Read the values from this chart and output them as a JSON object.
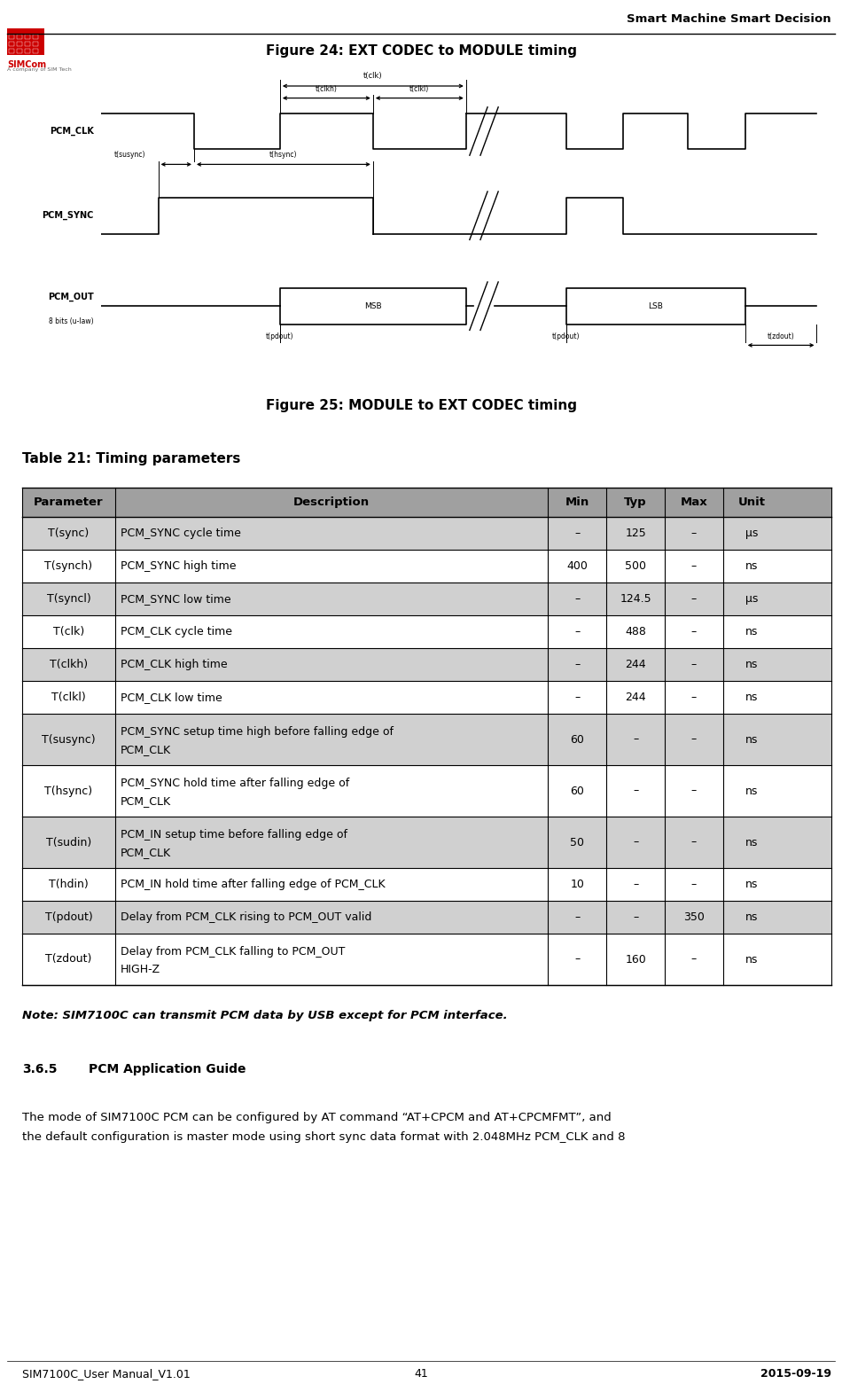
{
  "page_width": 9.5,
  "page_height": 15.61,
  "dpi": 100,
  "bg_color": "#ffffff",
  "header_text": "Smart Machine Smart Decision",
  "figure24_title": "Figure 24: EXT CODEC to MODULE timing",
  "figure25_title": "Figure 25: MODULE to EXT CODEC timing",
  "table_title": "Table 21: Timing parameters",
  "table_headers": [
    "Parameter",
    "Description",
    "Min",
    "Typ",
    "Max",
    "Unit"
  ],
  "table_header_bg": "#a0a0a0",
  "table_row_bg_even": "#d0d0d0",
  "table_row_bg_odd": "#ffffff",
  "table_rows": [
    [
      "T(sync)",
      "PCM_SYNC cycle time",
      "–",
      "125",
      "–",
      "μs"
    ],
    [
      "T(synch)",
      "PCM_SYNC high time",
      "400",
      "500",
      "–",
      "ns"
    ],
    [
      "T(syncl)",
      "PCM_SYNC low time",
      "–",
      "124.5",
      "–",
      "μs"
    ],
    [
      "T(clk)",
      "PCM_CLK cycle time",
      "–",
      "488",
      "–",
      "ns"
    ],
    [
      "T(clkh)",
      "PCM_CLK high time",
      "–",
      "244",
      "–",
      "ns"
    ],
    [
      "T(clkl)",
      "PCM_CLK low time",
      "–",
      "244",
      "–",
      "ns"
    ],
    [
      "T(susync)",
      "PCM_SYNC setup time high before falling edge of\nPCM_CLK",
      "60",
      "–",
      "–",
      "ns"
    ],
    [
      "T(hsync)",
      "PCM_SYNC hold time after falling edge of\nPCM_CLK",
      "60",
      "–",
      "–",
      "ns"
    ],
    [
      "T(sudin)",
      "PCM_IN setup time before falling edge of\nPCM_CLK",
      "50",
      "–",
      "–",
      "ns"
    ],
    [
      "T(hdin)",
      "PCM_IN hold time after falling edge of PCM_CLK",
      "10",
      "–",
      "–",
      "ns"
    ],
    [
      "T(pdout)",
      "Delay from PCM_CLK rising to PCM_OUT valid",
      "–",
      "–",
      "350",
      "ns"
    ],
    [
      "T(zdout)",
      "Delay from PCM_CLK falling to PCM_OUT\nHIGH-Z",
      "–",
      "160",
      "–",
      "ns"
    ]
  ],
  "note_text": "Note: SIM7100C can transmit PCM data by USB except for PCM interface.",
  "section_title": "3.6.5",
  "section_title2": "PCM Application Guide",
  "body_text1": "The mode of SIM7100C PCM can be configured by AT command “AT+CPCM and AT+CPCMFMT”, and",
  "body_text2": "the default configuration is master mode using short sync data format with 2.048MHz PCM_CLK and 8",
  "footer_left": "SIM7100C_User Manual_V1.01",
  "footer_center": "41",
  "footer_right": "2015-09-19"
}
